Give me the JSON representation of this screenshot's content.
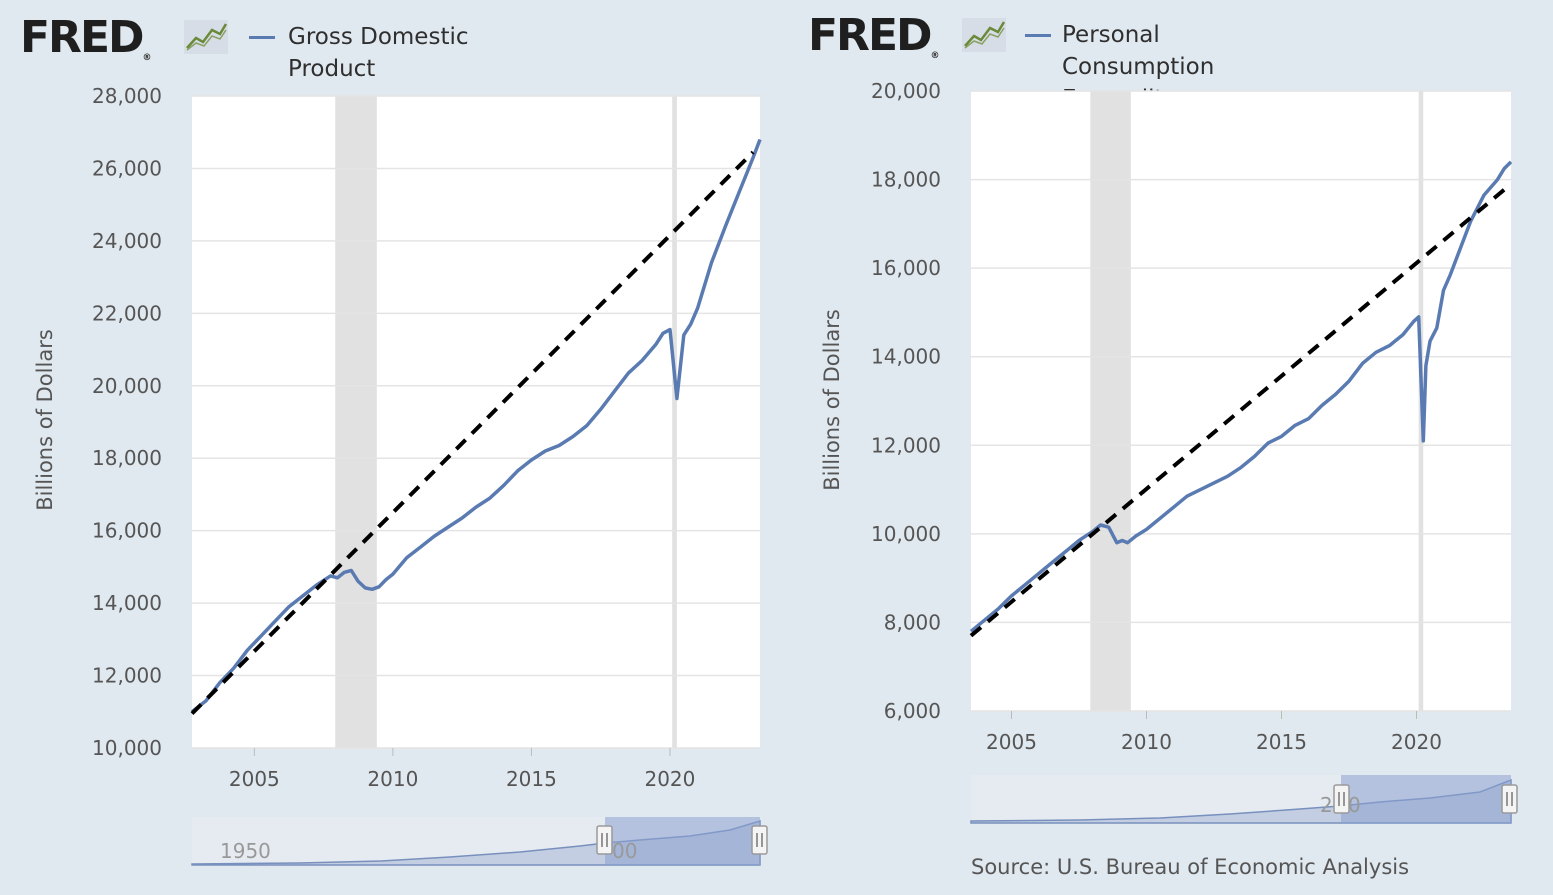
{
  "colors": {
    "series": "#5a7bb2",
    "trend": "#000000",
    "recession": "#e1e1e1",
    "grid": "#e4e4e4",
    "navigator": "#8ba1cf"
  },
  "left": {
    "brand": "FRED",
    "brand_mark": "®",
    "legend": "Gross Domestic\nProduct",
    "ylabel": "Billions of Dollars",
    "navigator_label": "1950",
    "navigator_label2": "00"
  },
  "right": {
    "brand": "FRED",
    "brand_mark": "®",
    "legend": "Personal\nConsumption\nExpenditures",
    "ylabel": "Billions of Dollars",
    "navigator_label": "20",
    "navigator_label2": "0",
    "source": "Source: U.S. Bureau of Economic Analysis"
  },
  "chart_data": [
    {
      "type": "line",
      "title": "",
      "series": [
        {
          "name": "Gross Domestic Product",
          "x": [
            2002.75,
            2003.25,
            2003.75,
            2004.25,
            2004.75,
            2005.25,
            2005.75,
            2006.25,
            2006.75,
            2007.25,
            2007.75,
            2008.0,
            2008.25,
            2008.5,
            2008.75,
            2009.0,
            2009.25,
            2009.5,
            2009.75,
            2010.0,
            2010.5,
            2011.0,
            2011.5,
            2012.0,
            2012.5,
            2013.0,
            2013.5,
            2014.0,
            2014.5,
            2015.0,
            2015.5,
            2016.0,
            2016.5,
            2017.0,
            2017.5,
            2018.0,
            2018.5,
            2019.0,
            2019.5,
            2019.75,
            2020.0,
            2020.25,
            2020.5,
            2020.75,
            2021.0,
            2021.5,
            2022.0,
            2022.5,
            2023.0,
            2023.25
          ],
          "y": [
            11000,
            11300,
            11800,
            12200,
            12700,
            13100,
            13500,
            13900,
            14200,
            14500,
            14750,
            14700,
            14850,
            14900,
            14600,
            14420,
            14380,
            14450,
            14650,
            14800,
            15250,
            15550,
            15850,
            16100,
            16350,
            16650,
            16900,
            17250,
            17650,
            17950,
            18200,
            18350,
            18600,
            18900,
            19350,
            19850,
            20350,
            20700,
            21150,
            21450,
            21550,
            19650,
            21400,
            21700,
            22150,
            23400,
            24400,
            25350,
            26300,
            26800
          ]
        },
        {
          "name": "",
          "x": [
            2002.75,
            2023.0
          ],
          "y": [
            10950,
            26450
          ]
        }
      ],
      "xlim": [
        2002.75,
        2023.25
      ],
      "ylim": [
        10000,
        28000
      ],
      "xticks": [
        "2005",
        "2010",
        "2015",
        "2020"
      ],
      "yticks": [
        "10,000",
        "12,000",
        "14,000",
        "16,000",
        "18,000",
        "20,000",
        "22,000",
        "24,000",
        "26,000",
        "28,000"
      ],
      "recession": [
        [
          2007.92,
          2009.42
        ],
        [
          2020.08,
          2020.25
        ]
      ],
      "grid": true,
      "xlabel": "",
      "ylabel": "Billions of Dollars"
    },
    {
      "type": "line",
      "title": "",
      "series": [
        {
          "name": "Personal Consumption Expenditures",
          "x": [
            2003.5,
            2004.0,
            2004.5,
            2005.0,
            2005.5,
            2006.0,
            2006.5,
            2007.0,
            2007.5,
            2008.0,
            2008.3,
            2008.6,
            2008.9,
            2009.1,
            2009.3,
            2009.6,
            2010.0,
            2010.5,
            2011.0,
            2011.5,
            2012.0,
            2012.5,
            2013.0,
            2013.5,
            2014.0,
            2014.5,
            2015.0,
            2015.5,
            2016.0,
            2016.5,
            2017.0,
            2017.5,
            2018.0,
            2018.5,
            2019.0,
            2019.5,
            2019.9,
            2020.08,
            2020.25,
            2020.35,
            2020.5,
            2020.75,
            2021.0,
            2021.25,
            2021.5,
            2022.0,
            2022.5,
            2023.0,
            2023.25,
            2023.5
          ],
          "y": [
            7800,
            8050,
            8300,
            8600,
            8850,
            9100,
            9350,
            9600,
            9850,
            10050,
            10200,
            10150,
            9800,
            9850,
            9800,
            9950,
            10100,
            10350,
            10600,
            10850,
            11000,
            11150,
            11300,
            11500,
            11750,
            12050,
            12200,
            12450,
            12600,
            12900,
            13150,
            13450,
            13850,
            14100,
            14250,
            14500,
            14800,
            14900,
            12100,
            13800,
            14350,
            14650,
            15500,
            15850,
            16250,
            17050,
            17650,
            18000,
            18250,
            18400
          ]
        },
        {
          "name": "",
          "x": [
            2003.5,
            2023.5
          ],
          "y": [
            7700,
            17900
          ]
        }
      ],
      "xlim": [
        2003.5,
        2023.5
      ],
      "ylim": [
        6000,
        20000
      ],
      "xticks": [
        "2005",
        "2010",
        "2015",
        "2020"
      ],
      "yticks": [
        "6,000",
        "8,000",
        "10,000",
        "12,000",
        "14,000",
        "16,000",
        "18,000",
        "20,000"
      ],
      "recession": [
        [
          2007.92,
          2009.42
        ],
        [
          2020.08,
          2020.25
        ]
      ],
      "grid": true,
      "xlabel": "",
      "ylabel": "Billions of Dollars"
    }
  ]
}
